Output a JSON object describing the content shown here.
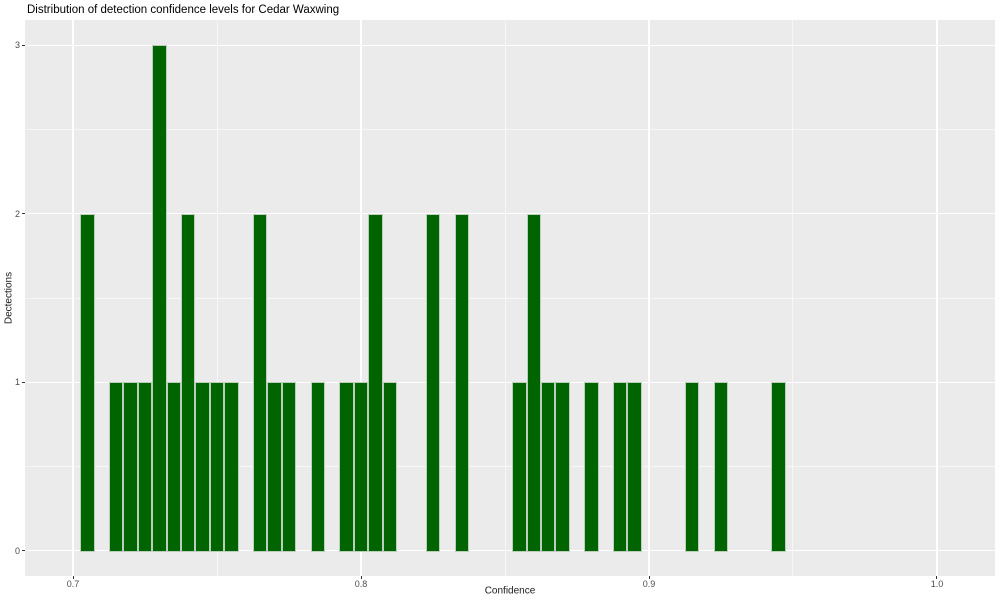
{
  "chart_data": {
    "type": "bar",
    "subtype": "histogram",
    "title": "Distribution of detection confidence levels for Cedar Waxwing",
    "xlabel": "Confidence",
    "ylabel": "Dectections",
    "x_tick_labels": [
      "0.7",
      "0.8",
      "0.9",
      "1.0"
    ],
    "x_tick_values": [
      0.7,
      0.8,
      0.9,
      1.0
    ],
    "y_tick_labels": [
      "0",
      "1",
      "2",
      "3"
    ],
    "y_tick_values": [
      0,
      1,
      2,
      3
    ],
    "x_range": [
      0.683333,
      1.020139
    ],
    "y_range": [
      -0.15,
      3.15
    ],
    "bin_width": 0.005,
    "grid": "on",
    "legend": "none",
    "bin_centers": [
      0.705,
      0.71,
      0.715,
      0.72,
      0.725,
      0.73,
      0.735,
      0.74,
      0.745,
      0.75,
      0.755,
      0.76,
      0.765,
      0.77,
      0.775,
      0.78,
      0.785,
      0.79,
      0.795,
      0.8,
      0.805,
      0.81,
      0.815,
      0.82,
      0.825,
      0.83,
      0.835,
      0.84,
      0.845,
      0.85,
      0.855,
      0.86,
      0.865,
      0.87,
      0.875,
      0.88,
      0.885,
      0.89,
      0.895,
      0.9,
      0.905,
      0.91,
      0.915,
      0.92,
      0.925,
      0.93,
      0.935,
      0.94,
      0.945
    ],
    "counts": [
      2,
      0,
      1,
      1,
      1,
      3,
      1,
      2,
      1,
      1,
      1,
      0,
      2,
      1,
      1,
      0,
      1,
      0,
      1,
      1,
      2,
      1,
      0,
      0,
      2,
      0,
      2,
      0,
      0,
      0,
      1,
      2,
      1,
      1,
      0,
      1,
      0,
      1,
      1,
      0,
      0,
      0,
      1,
      0,
      1,
      0,
      0,
      0,
      1
    ],
    "colors": {
      "bar_fill": "#006400",
      "bar_border": "#bccfbc",
      "panel_background": "#EBEBEB",
      "gridline": "#FFFFFF",
      "tick_label": "#4D4D4D",
      "title_text": "#000000"
    }
  }
}
